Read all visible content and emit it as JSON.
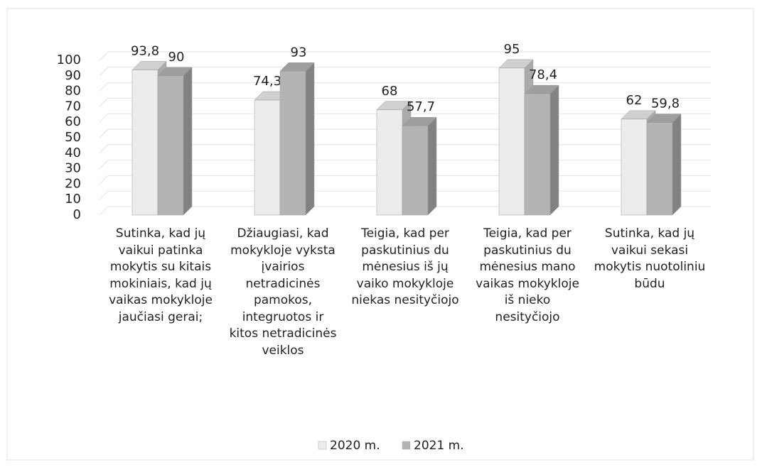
{
  "chart_data": {
    "type": "bar3d",
    "categories": [
      "Sutinka, kad jų vaikui patinka mokytis su kitais mokiniais, kad jų vaikas mokykloje jaučiasi gerai;",
      "Džiaugiasi, kad mokykloje vyksta įvairios netradicinės pamokos, integruotos ir kitos netradicinės veiklos",
      "Teigia, kad per paskutinius du mėnesius iš jų vaiko mokykloje niekas nesityčiojo",
      "Teigia, kad per paskutinius du mėnesius mano vaikas mokykloje iš nieko nesityčiojo",
      "Sutinka, kad jų vaikui sekasi mokytis nuotoliniu būdu"
    ],
    "series": [
      {
        "name": "2020 m.",
        "color": "#ececec",
        "values": [
          93.8,
          74.3,
          68,
          95,
          62
        ],
        "value_labels": [
          "93,8",
          "74,3",
          "68",
          "95",
          "62"
        ]
      },
      {
        "name": "2021 m.",
        "color": "#b4b4b4",
        "values": [
          90,
          93,
          57.7,
          78.4,
          59.8
        ],
        "value_labels": [
          "90",
          "93",
          "57,7",
          "78,4",
          "59,8"
        ]
      }
    ],
    "ylim": [
      0,
      100
    ],
    "yticks": [
      0,
      10,
      20,
      30,
      40,
      50,
      60,
      70,
      80,
      90,
      100
    ],
    "grid": true,
    "legend": "bottom"
  }
}
